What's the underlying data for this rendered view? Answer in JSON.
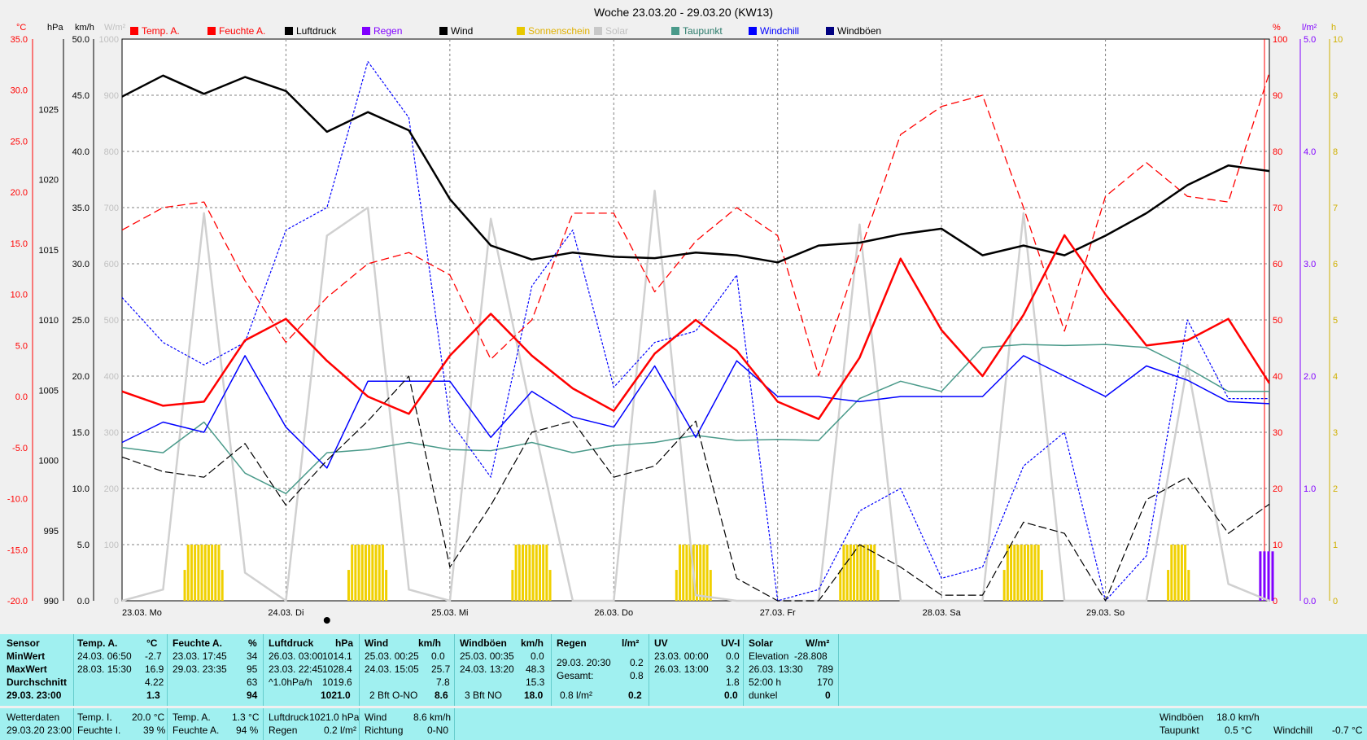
{
  "chart_data": {
    "type": "line",
    "title": "Woche 23.03.20 - 29.03.20 (KW13)",
    "legend": [
      {
        "name": "Temp. A.",
        "color": "#ff0000"
      },
      {
        "name": "Feuchte A.",
        "color": "#ff0000"
      },
      {
        "name": "Luftdruck",
        "color": "#000000"
      },
      {
        "name": "Regen",
        "color": "#8000ff"
      },
      {
        "name": "Wind",
        "color": "#000000"
      },
      {
        "name": "Sonnenschein",
        "color": "#e8c800"
      },
      {
        "name": "Solar",
        "color": "#c8c8c8"
      },
      {
        "name": "Taupunkt",
        "color": "#4a9a8a"
      },
      {
        "name": "Windchill",
        "color": "#0000ff"
      },
      {
        "name": "Windböen",
        "color": "#000080"
      }
    ],
    "x_ticks": [
      "23.03. Mo",
      "24.03. Di",
      "25.03. Mi",
      "26.03. Do",
      "27.03. Fr",
      "28.03. Sa",
      "29.03. So"
    ],
    "axes": {
      "temp": {
        "unit": "°C",
        "ticks": [
          "35.0",
          "30.0",
          "25.0",
          "20.0",
          "15.0",
          "10.0",
          "5.0",
          "0.0",
          "-5.0",
          "-10.0",
          "-15.0",
          "-20.0"
        ],
        "ylim": [
          -20,
          35
        ]
      },
      "pressure": {
        "unit": "hPa",
        "ticks": [
          "1025",
          "1020",
          "1015",
          "1010",
          "1005",
          "1000",
          "995",
          "990"
        ],
        "ylim": [
          990,
          1030
        ]
      },
      "wind": {
        "unit": "km/h",
        "ticks": [
          "50.0",
          "45.0",
          "40.0",
          "35.0",
          "30.0",
          "25.0",
          "20.0",
          "15.0",
          "10.0",
          "5.0",
          "0.0"
        ],
        "ylim": [
          0,
          50
        ]
      },
      "solar": {
        "unit": "W/m²",
        "ticks": [
          "1000",
          "900",
          "800",
          "700",
          "600",
          "500",
          "400",
          "300",
          "200",
          "100",
          "0"
        ],
        "ylim": [
          0,
          1000
        ]
      },
      "humidity": {
        "unit": "%",
        "ticks": [
          "100",
          "90",
          "80",
          "70",
          "60",
          "50",
          "40",
          "30",
          "20",
          "10",
          "0"
        ],
        "ylim": [
          0,
          100
        ]
      },
      "rain": {
        "unit": "l/m²",
        "ticks": [
          "5.0",
          "4.0",
          "3.0",
          "2.0",
          "1.0",
          "0.0"
        ],
        "ylim": [
          0,
          5
        ]
      },
      "sun": {
        "unit": "h",
        "ticks": [
          "10",
          "9",
          "8",
          "7",
          "6",
          "5",
          "4",
          "3",
          "2",
          "1",
          "0"
        ],
        "ylim": [
          0,
          10
        ]
      }
    },
    "hours": [
      0,
      6,
      12,
      18,
      24,
      30,
      36,
      42,
      48,
      54,
      60,
      66,
      72,
      78,
      84,
      90,
      96,
      102,
      108,
      114,
      120,
      126,
      132,
      138,
      144,
      150,
      156,
      162,
      168
    ],
    "series": [
      {
        "name": "Temp. A.",
        "unit": "°C",
        "values": [
          0.5,
          -0.9,
          -0.5,
          5.5,
          7.6,
          3.5,
          0,
          -1.7,
          4,
          8.1,
          4,
          0.8,
          -1.4,
          4.2,
          7.5,
          4.5,
          -0.5,
          -2.2,
          3.8,
          13.5,
          6.5,
          2,
          8,
          15.8,
          10,
          5,
          5.5,
          7.6,
          1.3
        ]
      },
      {
        "name": "Feuchte A.",
        "unit": "%",
        "values": [
          66,
          70,
          71,
          57,
          46,
          54,
          60,
          62,
          58,
          43,
          50,
          69,
          69,
          55,
          64,
          70,
          65,
          40,
          62,
          83,
          88,
          90,
          70,
          48,
          72,
          78,
          72,
          71,
          94
        ]
      },
      {
        "name": "Luftdruck",
        "unit": "hPa",
        "values": [
          1025.9,
          1027.4,
          1026.1,
          1027.3,
          1026.3,
          1023.4,
          1024.8,
          1023.5,
          1018.6,
          1015.3,
          1014.3,
          1014.8,
          1014.5,
          1014.4,
          1014.8,
          1014.6,
          1014.1,
          1015.3,
          1015.5,
          1016.1,
          1016.5,
          1014.6,
          1015.3,
          1014.6,
          1016.0,
          1017.6,
          1019.6,
          1021.0,
          1020.6
        ]
      },
      {
        "name": "Wind",
        "unit": "km/h",
        "values": [
          12.8,
          11.5,
          11.0,
          14,
          8.5,
          12.5,
          16,
          20,
          3,
          8.5,
          15,
          16,
          11,
          12,
          16,
          2,
          0,
          0,
          5,
          3,
          0.5,
          0.5,
          7,
          6,
          0,
          9,
          11,
          6,
          8.6
        ]
      },
      {
        "name": "Windchill",
        "unit": "°C",
        "values": [
          -4.5,
          -2.5,
          -3.5,
          4,
          -3,
          -7,
          1.5,
          1.5,
          1.5,
          -4,
          0.5,
          -2,
          -3,
          3,
          -4,
          3.5,
          0,
          0,
          -0.5,
          0,
          0,
          0,
          4,
          2,
          0,
          3,
          1.6,
          -0.5,
          -0.7
        ]
      },
      {
        "name": "Taupunkt",
        "unit": "°C",
        "values": [
          -5,
          -5.5,
          -2.5,
          -7.5,
          -9.5,
          -5.5,
          -5.2,
          -4.5,
          -5.2,
          -5.3,
          -4.5,
          -5.5,
          -4.8,
          -4.5,
          -3.8,
          -4.3,
          -4.2,
          -4.3,
          -0.2,
          1.5,
          0.5,
          4.8,
          5.1,
          5.0,
          5.1,
          4.8,
          2.8,
          0.5,
          0.5
        ]
      },
      {
        "name": "Windböen",
        "unit": "km/h",
        "values": [
          27,
          23,
          21,
          23,
          33,
          35,
          48,
          43,
          16,
          11,
          28,
          33,
          19,
          23,
          24,
          29,
          0,
          1,
          8,
          10,
          2,
          3,
          12,
          15,
          0,
          4,
          25,
          18,
          18
        ]
      },
      {
        "name": "Solar",
        "unit": "W/m²",
        "values": [
          0,
          20,
          690,
          50,
          0,
          650,
          700,
          20,
          0,
          680,
          330,
          0,
          0,
          730,
          10,
          0,
          0,
          0,
          670,
          0,
          0,
          0,
          690,
          0,
          0,
          0,
          420,
          30,
          0
        ]
      }
    ],
    "sunshine_days": [
      {
        "day": "23.03.",
        "bars": 12
      },
      {
        "day": "24.03.",
        "bars": 12
      },
      {
        "day": "25.03.",
        "bars": 12
      },
      {
        "day": "26.03.",
        "bars": 11
      },
      {
        "day": "27.03.",
        "bars": 12
      },
      {
        "day": "28.03.",
        "bars": 12
      },
      {
        "day": "29.03.",
        "bars": 7
      }
    ],
    "rain_bars": {
      "values": [
        0.2,
        0.2,
        0.2,
        0.2
      ],
      "unit": "l/m²"
    }
  },
  "stats": {
    "headers": {
      "sensor": "Sensor",
      "temp": {
        "label": "Temp. A.",
        "unit": "°C"
      },
      "hum": {
        "label": "Feuchte A.",
        "unit": "%"
      },
      "press": {
        "label": "Luftdruck",
        "unit": "hPa"
      },
      "wind": {
        "label": "Wind",
        "unit": "km/h"
      },
      "gust": {
        "label": "Windböen",
        "unit": "km/h"
      },
      "rain": {
        "label": "Regen",
        "unit": "l/m²"
      },
      "uv": {
        "label": "UV",
        "unit": "UV-I"
      },
      "solar": {
        "label": "Solar",
        "unit": "W/m²"
      }
    },
    "row_labels": [
      "MinWert",
      "MaxWert",
      "Durchschnitt",
      "29.03. 23:00"
    ],
    "temp": [
      [
        "24.03.  06:50",
        "-2.7"
      ],
      [
        "28.03.  15:30",
        "16.9"
      ],
      [
        "",
        "4.22"
      ],
      [
        "",
        "1.3"
      ]
    ],
    "hum": [
      [
        "23.03.  17:45",
        "34"
      ],
      [
        "29.03.  23:35",
        "95"
      ],
      [
        "",
        "63"
      ],
      [
        "",
        "94"
      ]
    ],
    "press": [
      [
        "26.03.  03:00",
        "1014.1"
      ],
      [
        "23.03.  22:45",
        "1028.4"
      ],
      [
        "^1.0hPa/h",
        "1019.6"
      ],
      [
        "",
        "1021.0"
      ]
    ],
    "wind": [
      [
        "25.03.  00:25",
        "0.0"
      ],
      [
        "24.03.  15:05",
        "25.7"
      ],
      [
        "",
        "7.8"
      ],
      [
        "2 Bft O-NO",
        "8.6"
      ]
    ],
    "gust": [
      [
        "25.03.  00:35",
        "0.0"
      ],
      [
        "24.03.  13:20",
        "48.3"
      ],
      [
        "",
        "15.3"
      ],
      [
        "3 Bft NO",
        "18.0"
      ]
    ],
    "rain": [
      [
        "29.03.  20:30",
        "0.2"
      ],
      [
        "Gesamt:",
        "0.8"
      ],
      [
        "0.8 l/m²",
        "0.2"
      ]
    ],
    "uv": [
      [
        "23.03.  00:00",
        "0.0"
      ],
      [
        "26.03.  13:00",
        "3.2"
      ],
      [
        "",
        "1.8"
      ],
      [
        "",
        "0.0"
      ]
    ],
    "solar": [
      [
        "Elevation",
        "-28.808"
      ],
      [
        "26.03.  13:30",
        "789"
      ],
      [
        "52:00 h",
        "170"
      ],
      [
        "dunkel",
        "0"
      ]
    ]
  },
  "current": {
    "label1": "Wetterdaten",
    "label2": "29.03.20 23:00",
    "tempi_l": "Temp. I.",
    "tempi_v": "20.0 °C",
    "feuchtei_l": "Feuchte I.",
    "feuchtei_v": "39 %",
    "tempa_l": "Temp. A.",
    "tempa_v": "1.3 °C",
    "feuchtea_l": "Feuchte A.",
    "feuchtea_v": "94 %",
    "luft_l": "Luftdruck",
    "luft_v": "1021.0 hPa",
    "regen_l": "Regen",
    "regen_v": "0.2 l/m²",
    "wind_l": "Wind",
    "wind_v": "8.6 km/h",
    "richt_l": "Richtung",
    "richt_v": "0-N0",
    "boe_l": "Windböen",
    "boe_v": "18.0 km/h",
    "taup_l": "Taupunkt",
    "taup_v": "0.5 °C",
    "wchill_l": "Windchill",
    "wchill_v": "-0.7 °C"
  }
}
